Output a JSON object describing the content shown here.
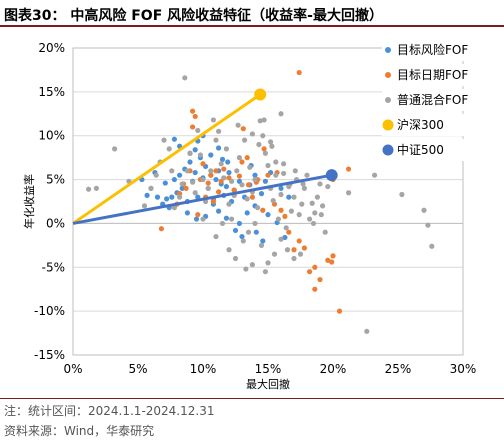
{
  "header": {
    "title": "图表30：  中高风险 FOF 风险收益特征（收益率-最大回撤）"
  },
  "footer": {
    "note": "注：统计区间：2024.1.1-2024.12.31",
    "source": "资料来源：Wind，华泰研究"
  },
  "colors": {
    "blue": "#4a90d9",
    "orange": "#ed7d31",
    "gray": "#a5a5a5",
    "yellow": "#fcc000",
    "darkblue": "#4472c4",
    "header_bar": "#7b1c1c"
  },
  "chart_data": {
    "type": "scatter",
    "xlabel": "最大回撤",
    "ylabel": "年化收益率",
    "xlim": [
      0,
      0.3
    ],
    "ylim": [
      -0.15,
      0.2
    ],
    "x_ticks": [
      "0%",
      "5%",
      "10%",
      "15%",
      "20%",
      "25%",
      "30%"
    ],
    "y_ticks": [
      "20%",
      "15%",
      "10%",
      "5%",
      "0%",
      "-5%",
      "-10%",
      "-15%"
    ],
    "grid": "horizontal",
    "legend_position": "right",
    "series": [
      {
        "name": "目标风险FOF",
        "color": "#4a90d9",
        "kind": "dots",
        "points": [
          [
            0.053,
            0.05
          ],
          [
            0.057,
            0.032
          ],
          [
            0.06,
            0.04
          ],
          [
            0.063,
            0.058
          ],
          [
            0.065,
            0.03
          ],
          [
            0.069,
            0.022
          ],
          [
            0.071,
            0.046
          ],
          [
            0.072,
            0.028
          ],
          [
            0.074,
            0.018
          ],
          [
            0.076,
            0.03
          ],
          [
            0.078,
            0.05
          ],
          [
            0.08,
            0.035
          ],
          [
            0.082,
            0.055
          ],
          [
            0.084,
            0.04
          ],
          [
            0.086,
            0.062
          ],
          [
            0.088,
            0.025
          ],
          [
            0.09,
            0.07
          ],
          [
            0.092,
            0.048
          ],
          [
            0.094,
            0.058
          ],
          [
            0.096,
            0.03
          ],
          [
            0.098,
            0.075
          ],
          [
            0.1,
            0.052
          ],
          [
            0.102,
            0.065
          ],
          [
            0.104,
            0.04
          ],
          [
            0.106,
            0.055
          ],
          [
            0.108,
            0.028
          ],
          [
            0.11,
            0.05
          ],
          [
            0.112,
            0.06
          ],
          [
            0.114,
            0.045
          ],
          [
            0.116,
            0.032
          ],
          [
            0.118,
            0.042
          ],
          [
            0.12,
            0.058
          ],
          [
            0.124,
            0.038
          ],
          [
            0.128,
            0.048
          ],
          [
            0.132,
            0.03
          ],
          [
            0.136,
            0.044
          ],
          [
            0.14,
            0.02
          ],
          [
            0.145,
            0.034
          ],
          [
            0.118,
            0.006
          ],
          [
            0.125,
            -0.008
          ],
          [
            0.13,
            -0.015
          ],
          [
            0.128,
            0.0
          ],
          [
            0.134,
            0.012
          ],
          [
            0.141,
            -0.01
          ],
          [
            0.146,
            -0.02
          ],
          [
            0.108,
            0.022
          ],
          [
            0.112,
            0.014
          ],
          [
            0.102,
            0.008
          ],
          [
            0.096,
            0.094
          ],
          [
            0.09,
            0.08
          ],
          [
            0.094,
            0.084
          ],
          [
            0.1,
            0.1
          ],
          [
            0.106,
            0.078
          ],
          [
            0.112,
            0.086
          ],
          [
            0.115,
            0.073
          ],
          [
            0.082,
            0.088
          ],
          [
            0.078,
            0.096
          ],
          [
            0.148,
            0.048
          ],
          [
            0.152,
            0.058
          ],
          [
            0.16,
            0.04
          ],
          [
            0.166,
            0.03
          ],
          [
            0.15,
            0.01
          ],
          [
            0.157,
            0.001
          ],
          [
            0.163,
            -0.016
          ],
          [
            0.137,
            0.066
          ],
          [
            0.119,
            0.07
          ],
          [
            0.088,
            0.012
          ],
          [
            0.095,
            0.005
          ],
          [
            0.14,
            0.055
          ],
          [
            0.122,
            0.025
          ]
        ]
      },
      {
        "name": "目标日期FOF",
        "color": "#ed7d31",
        "kind": "dots",
        "points": [
          [
            0.068,
            -0.006
          ],
          [
            0.08,
            0.022
          ],
          [
            0.082,
            0.034
          ],
          [
            0.085,
            0.045
          ],
          [
            0.087,
            0.04
          ],
          [
            0.09,
            0.06
          ],
          [
            0.092,
            0.128
          ],
          [
            0.094,
            0.122
          ],
          [
            0.096,
            0.01
          ],
          [
            0.098,
            0.05
          ],
          [
            0.1,
            0.068
          ],
          [
            0.102,
            0.03
          ],
          [
            0.104,
            0.046
          ],
          [
            0.106,
            0.055
          ],
          [
            0.108,
            0.025
          ],
          [
            0.11,
            0.06
          ],
          [
            0.112,
            0.036
          ],
          [
            0.114,
            0.048
          ],
          [
            0.116,
            0.062
          ],
          [
            0.12,
            0.052
          ],
          [
            0.124,
            0.038
          ],
          [
            0.128,
            0.054
          ],
          [
            0.13,
            0.07
          ],
          [
            0.131,
            0.108
          ],
          [
            0.135,
            0.044
          ],
          [
            0.138,
            0.03
          ],
          [
            0.142,
            0.05
          ],
          [
            0.146,
            0.015
          ],
          [
            0.15,
            0.055
          ],
          [
            0.155,
            0.022
          ],
          [
            0.16,
            0.015
          ],
          [
            0.163,
            0.008
          ],
          [
            0.166,
            -0.01
          ],
          [
            0.17,
            -0.03
          ],
          [
            0.174,
            -0.02
          ],
          [
            0.178,
            -0.028
          ],
          [
            0.182,
            -0.055
          ],
          [
            0.186,
            -0.075
          ],
          [
            0.19,
            -0.064
          ],
          [
            0.196,
            -0.042
          ],
          [
            0.199,
            -0.044
          ],
          [
            0.2,
            -0.037
          ],
          [
            0.205,
            -0.1
          ],
          [
            0.212,
            0.062
          ],
          [
            0.174,
            0.172
          ],
          [
            0.157,
            0.058
          ],
          [
            0.141,
            0.047
          ],
          [
            0.134,
            0.075
          ],
          [
            0.147,
            0.085
          ],
          [
            0.2,
            0.05
          ],
          [
            0.092,
            0.11
          ],
          [
            0.186,
            -0.05
          ]
        ]
      },
      {
        "name": "普通混合FOF",
        "color": "#a5a5a5",
        "kind": "dots",
        "points": [
          [
            0.012,
            0.039
          ],
          [
            0.032,
            0.085
          ],
          [
            0.018,
            0.04
          ],
          [
            0.043,
            0.048
          ],
          [
            0.055,
            0.02
          ],
          [
            0.06,
            0.04
          ],
          [
            0.064,
            0.055
          ],
          [
            0.067,
            0.07
          ],
          [
            0.07,
            0.095
          ],
          [
            0.074,
            0.085
          ],
          [
            0.076,
            0.06
          ],
          [
            0.078,
            0.018
          ],
          [
            0.082,
            0.03
          ],
          [
            0.084,
            0.045
          ],
          [
            0.086,
            0.166
          ],
          [
            0.088,
            0.06
          ],
          [
            0.09,
            0.08
          ],
          [
            0.092,
            0.047
          ],
          [
            0.094,
            0.035
          ],
          [
            0.096,
            0.106
          ],
          [
            0.098,
            0.078
          ],
          [
            0.1,
            0.05
          ],
          [
            0.102,
            0.025
          ],
          [
            0.104,
            0.04
          ],
          [
            0.106,
            0.06
          ],
          [
            0.108,
            0.118
          ],
          [
            0.11,
            0.095
          ],
          [
            0.112,
            0.105
          ],
          [
            0.114,
            0.068
          ],
          [
            0.116,
            0.052
          ],
          [
            0.118,
            0.085
          ],
          [
            0.12,
            0.022
          ],
          [
            0.122,
            0.048
          ],
          [
            0.124,
            0.032
          ],
          [
            0.126,
            0.06
          ],
          [
            0.128,
            0.075
          ],
          [
            0.13,
            0.044
          ],
          [
            0.132,
            0.095
          ],
          [
            0.134,
            0.028
          ],
          [
            0.136,
            0.064
          ],
          [
            0.138,
            0.036
          ],
          [
            0.14,
            0.05
          ],
          [
            0.142,
            0.018
          ],
          [
            0.144,
            0.117
          ],
          [
            0.146,
            0.1
          ],
          [
            0.148,
            0.08
          ],
          [
            0.15,
            0.066
          ],
          [
            0.152,
            0.04
          ],
          [
            0.154,
            0.026
          ],
          [
            0.156,
            0.055
          ],
          [
            0.158,
            0.005
          ],
          [
            0.16,
            0.033
          ],
          [
            0.162,
            0.068
          ],
          [
            0.164,
            -0.005
          ],
          [
            0.166,
            0.042
          ],
          [
            0.168,
            0.014
          ],
          [
            0.17,
            0.03
          ],
          [
            0.172,
            0.05
          ],
          [
            0.174,
            0.01
          ],
          [
            0.176,
            0.022
          ],
          [
            0.178,
            0.04
          ],
          [
            0.18,
            0.055
          ],
          [
            0.182,
            0.005
          ],
          [
            0.184,
            0.023
          ],
          [
            0.186,
            0.012
          ],
          [
            0.188,
            0.03
          ],
          [
            0.19,
            0.045
          ],
          [
            0.192,
            0.02
          ],
          [
            0.194,
            -0.01
          ],
          [
            0.196,
            0.042
          ],
          [
            0.131,
            -0.02
          ],
          [
            0.135,
            -0.01
          ],
          [
            0.14,
            0.0
          ],
          [
            0.145,
            -0.025
          ],
          [
            0.15,
            -0.045
          ],
          [
            0.155,
            -0.035
          ],
          [
            0.16,
            -0.018
          ],
          [
            0.165,
            -0.03
          ],
          [
            0.17,
            -0.04
          ],
          [
            0.175,
            -0.035
          ],
          [
            0.12,
            -0.03
          ],
          [
            0.125,
            -0.04
          ],
          [
            0.115,
            0.0
          ],
          [
            0.11,
            -0.015
          ],
          [
            0.1,
            0.005
          ],
          [
            0.138,
            -0.047
          ],
          [
            0.148,
            -0.055
          ],
          [
            0.133,
            -0.052
          ],
          [
            0.143,
            0.09
          ],
          [
            0.153,
            0.088
          ],
          [
            0.147,
            0.118
          ],
          [
            0.138,
            0.102
          ],
          [
            0.127,
            0.112
          ],
          [
            0.156,
            0.07
          ],
          [
            0.162,
            0.057
          ],
          [
            0.171,
            0.06
          ],
          [
            0.177,
            0.045
          ],
          [
            0.185,
            0.0
          ],
          [
            0.191,
            0.01
          ],
          [
            0.212,
            0.035
          ],
          [
            0.226,
            -0.123
          ],
          [
            0.232,
            0.055
          ],
          [
            0.253,
            0.033
          ],
          [
            0.27,
            0.015
          ],
          [
            0.273,
            -0.002
          ],
          [
            0.276,
            -0.026
          ],
          [
            0.16,
            0.125
          ],
          [
            0.152,
            0.093
          ],
          [
            0.167,
            0.045
          ],
          [
            0.122,
            0.005
          ]
        ]
      },
      {
        "name": "沪深300",
        "color": "#fcc000",
        "kind": "marker-line",
        "points": [
          [
            0.144,
            0.147
          ]
        ]
      },
      {
        "name": "中证500",
        "color": "#4472c4",
        "kind": "marker-line",
        "points": [
          [
            0.199,
            0.055
          ]
        ]
      }
    ]
  }
}
